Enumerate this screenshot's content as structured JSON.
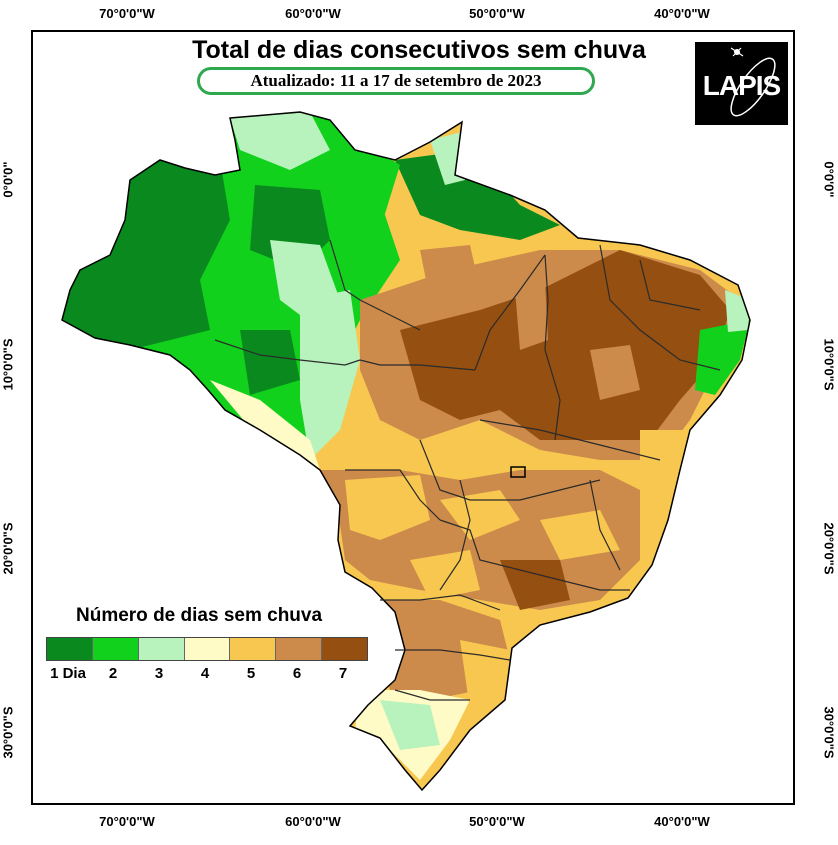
{
  "title": "Total de dias consecutivos sem chuva",
  "subtitle": "Atualizado: 11 a 17 de setembro de 2023",
  "logo_text": "LAPIS",
  "axes": {
    "longitude_labels": [
      "70°0'0\"W",
      "60°0'0\"W",
      "50°0'0\"W",
      "40°0'0\"W"
    ],
    "latitude_labels": [
      "0°0'0\"",
      "10°0'0\"S",
      "20°0'0\"S",
      "30°0'0\"S"
    ]
  },
  "legend": {
    "title": "Número de dias sem chuva",
    "items": [
      {
        "label": "1 Dia",
        "color": "#0a8a1e"
      },
      {
        "label": "2",
        "color": "#11d11c"
      },
      {
        "label": "3",
        "color": "#b8f2bd"
      },
      {
        "label": "4",
        "color": "#fffbc6"
      },
      {
        "label": "5",
        "color": "#f8c750"
      },
      {
        "label": "6",
        "color": "#cc8a4b"
      },
      {
        "label": "7",
        "color": "#954f10"
      }
    ]
  }
}
